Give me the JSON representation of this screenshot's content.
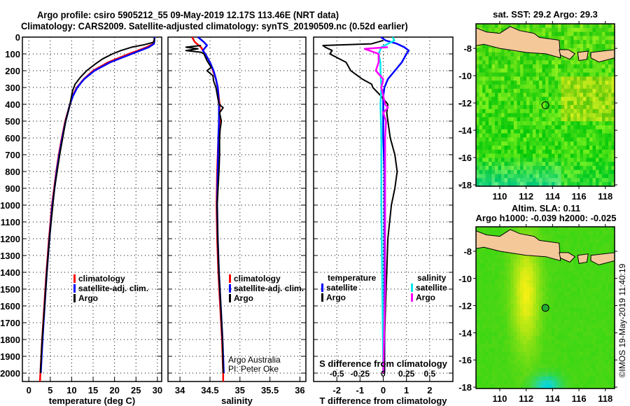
{
  "header": {
    "line1": "Argo profile: csiro 5905212_55 09-May-2019 12.17S 113.46E (NRT data)",
    "line2": "Climatology: CARS2009. Satellite-adjusted climatology: synTS_20190509.nc (0.52d earlier)"
  },
  "colors": {
    "climatology": "#ff0000",
    "satellite": "#0000ff",
    "argo": "#000000",
    "salinity_satellite": "#00e5ee",
    "salinity_argo": "#ff00ff",
    "land": "#f5c89a"
  },
  "chart_data": [
    {
      "type": "line",
      "name": "temperature-profile",
      "xlabel": "temperature (deg C)",
      "ylabel": "",
      "xlim": [
        -1.5,
        31
      ],
      "ylim": [
        2050,
        0
      ],
      "xticks": [
        0,
        5,
        10,
        15,
        20,
        25,
        30
      ],
      "yticks": [
        0,
        100,
        200,
        300,
        400,
        500,
        600,
        700,
        800,
        900,
        1000,
        1100,
        1200,
        1300,
        1400,
        1500,
        1600,
        1700,
        1800,
        1900,
        2000
      ],
      "grid": true,
      "legend": {
        "position": "lower-right",
        "entries": [
          "climatology",
          "satellite-adj. clim.",
          "Argo"
        ]
      },
      "series": [
        {
          "name": "climatology",
          "color_key": "climatology",
          "depth": [
            20,
            40,
            60,
            80,
            100,
            150,
            200,
            250,
            300,
            350,
            400,
            500,
            600,
            700,
            800,
            900,
            1000,
            1200,
            1400,
            1600,
            1800,
            2000,
            2050
          ],
          "values": [
            29.2,
            29.0,
            27.5,
            25.5,
            23.3,
            18.5,
            15.0,
            12.8,
            11.2,
            10.2,
            9.6,
            8.5,
            7.7,
            7.0,
            6.4,
            5.9,
            5.4,
            4.7,
            4.1,
            3.6,
            3.1,
            2.7,
            2.6
          ]
        },
        {
          "name": "satellite-adj. clim.",
          "color_key": "satellite",
          "depth": [
            0,
            20,
            40,
            60,
            80,
            100,
            150,
            200,
            250,
            300,
            350,
            400,
            500,
            600,
            700,
            800,
            900,
            1000,
            1200,
            1400,
            1600,
            1800,
            2000
          ],
          "values": [
            29.3,
            29.3,
            29.2,
            28.0,
            26.0,
            24.0,
            19.0,
            15.3,
            12.9,
            11.3,
            10.3,
            9.6,
            8.6,
            7.8,
            7.1,
            6.5,
            6.0,
            5.5,
            4.8,
            4.2,
            3.7,
            3.2,
            2.8
          ]
        },
        {
          "name": "Argo",
          "color_key": "argo",
          "depth": [
            5,
            30,
            45,
            60,
            80,
            100,
            130,
            160,
            200,
            240,
            280,
            320,
            360,
            400,
            450,
            500,
            600,
            700,
            800,
            900,
            1000,
            1200,
            1400,
            1600,
            1800,
            2000
          ],
          "values": [
            29.3,
            29.2,
            27.0,
            24.0,
            21.5,
            19.5,
            17.2,
            15.5,
            13.5,
            12.0,
            10.8,
            10.2,
            9.9,
            9.6,
            9.1,
            8.6,
            7.9,
            7.2,
            6.6,
            6.0,
            5.6,
            4.8,
            4.2,
            3.7,
            3.1,
            2.7
          ]
        }
      ]
    },
    {
      "type": "line",
      "name": "salinity-profile",
      "xlabel": "salinity",
      "xlim": [
        33.8,
        36.1
      ],
      "ylim": [
        2050,
        0
      ],
      "xticks": [
        34,
        34.5,
        35,
        35.5,
        36
      ],
      "grid": true,
      "legend": {
        "position": "lower-right",
        "entries": [
          "climatology",
          "satellite-adj. clim.",
          "Argo"
        ]
      },
      "annotation": [
        "Argo Australia",
        "PI: Peter Oke"
      ],
      "series": [
        {
          "name": "climatology",
          "color_key": "climatology",
          "depth": [
            0,
            30,
            60,
            100,
            150,
            200,
            250,
            300,
            400,
            500,
            600,
            800,
            1000,
            1200,
            1400,
            1600,
            1800,
            2000,
            2050
          ],
          "values": [
            34.2,
            34.25,
            34.35,
            34.42,
            34.5,
            34.55,
            34.6,
            34.63,
            34.66,
            34.66,
            34.64,
            34.62,
            34.61,
            34.62,
            34.64,
            34.67,
            34.7,
            34.72,
            34.72
          ]
        },
        {
          "name": "satellite-adj. clim.",
          "color_key": "satellite",
          "depth": [
            0,
            30,
            50,
            80,
            100,
            150,
            200,
            250,
            300,
            400,
            500,
            600,
            800,
            1000,
            1200,
            1400,
            1600,
            1800,
            2000
          ],
          "values": [
            34.3,
            34.4,
            34.45,
            34.38,
            34.42,
            34.5,
            34.56,
            34.6,
            34.63,
            34.65,
            34.65,
            34.64,
            34.63,
            34.62,
            34.63,
            34.65,
            34.68,
            34.71,
            34.73
          ]
        },
        {
          "name": "Argo",
          "color_key": "argo",
          "depth": [
            50,
            60,
            70,
            80,
            90,
            100,
            140,
            180,
            200,
            230,
            260,
            300,
            400,
            420,
            450,
            500,
            550,
            600,
            700,
            800,
            1000,
            1200,
            1400,
            1600,
            1800,
            2000
          ],
          "values": [
            34.35,
            34.1,
            34.3,
            34.1,
            34.35,
            34.4,
            34.45,
            34.52,
            34.45,
            34.55,
            34.56,
            34.6,
            34.65,
            34.72,
            34.66,
            34.69,
            34.67,
            34.66,
            34.66,
            34.65,
            34.62,
            34.63,
            34.65,
            34.68,
            34.71,
            34.72
          ]
        }
      ]
    },
    {
      "type": "line",
      "name": "difference-profile",
      "xlabel": "T difference from climatology",
      "xlabel2": "S difference from climatology",
      "xlim": [
        -3,
        3
      ],
      "x2lim": [
        -0.75,
        0.75
      ],
      "ylim": [
        2050,
        0
      ],
      "xticks": [
        -2,
        -1,
        0,
        1,
        2
      ],
      "x2ticks": [
        -0.5,
        -0.25,
        0,
        0.25,
        0.5
      ],
      "x2ticklabels": [
        "-0.5",
        "-0.25",
        "0",
        "0.25",
        "0.5"
      ],
      "grid": true,
      "legend": {
        "position": "lower-left/lower-right",
        "temperature_title": "temperature",
        "temperature_entries": [
          "satellite",
          "Argo"
        ],
        "salinity_title": "salinity",
        "salinity_entries": [
          "satellite",
          "Argo"
        ]
      },
      "series": [
        {
          "name": "temperature satellite",
          "color_key": "satellite",
          "axis": "T",
          "depth": [
            0,
            20,
            40,
            60,
            80,
            100,
            150,
            200,
            250,
            300,
            350,
            400,
            500,
            600,
            800,
            1000,
            1500,
            2000
          ],
          "values": [
            -0.1,
            0.1,
            0.6,
            0.9,
            1.1,
            1.0,
            0.8,
            0.5,
            0.2,
            0.05,
            0.0,
            0.0,
            0.0,
            0.0,
            0.05,
            0.05,
            0.05,
            0.05
          ]
        },
        {
          "name": "temperature Argo",
          "color_key": "argo",
          "axis": "T",
          "depth": [
            20,
            40,
            50,
            60,
            80,
            100,
            150,
            200,
            250,
            280,
            300,
            350,
            400,
            450,
            500,
            600,
            700,
            800,
            900,
            1000,
            1200,
            1400,
            1600,
            1800,
            2000
          ],
          "values": [
            0,
            -0.5,
            -2.6,
            -2.5,
            -2.2,
            -2.3,
            -1.6,
            -1.4,
            -0.9,
            -0.5,
            -0.45,
            -0.1,
            0.2,
            0.15,
            0.2,
            0.3,
            0.5,
            0.6,
            0.5,
            0.35,
            0.2,
            0.15,
            0.1,
            0.05,
            0.05
          ]
        },
        {
          "name": "salinity satellite",
          "color_key": "salinity_satellite",
          "axis": "S",
          "depth": [
            0,
            20,
            40,
            60,
            100,
            150,
            200,
            300,
            400,
            600,
            800,
            1000,
            1500,
            2000
          ],
          "values": [
            0.1,
            0.12,
            0.05,
            -0.02,
            -0.05,
            -0.03,
            -0.03,
            -0.02,
            -0.03,
            -0.02,
            -0.02,
            -0.02,
            -0.01,
            0.0
          ]
        },
        {
          "name": "salinity Argo",
          "color_key": "salinity_argo",
          "axis": "S",
          "depth": [
            60,
            70,
            80,
            100,
            120,
            150,
            200,
            250,
            300,
            350,
            400,
            420,
            450,
            500,
            600,
            800,
            1000,
            1200,
            1500,
            2000
          ],
          "values": [
            0.05,
            -0.2,
            -0.15,
            -0.05,
            -0.05,
            -0.05,
            -0.08,
            0.0,
            -0.02,
            0.0,
            0.02,
            0.05,
            0.0,
            0.03,
            0.02,
            0.02,
            0.02,
            0.02,
            0.02,
            0.0
          ]
        }
      ]
    },
    {
      "type": "heatmap",
      "name": "sst-map",
      "title": "sat. SST: 29.2 Argo: 29.3",
      "xlim": [
        108.2,
        118.7
      ],
      "ylim": [
        -18.1,
        -6.2
      ],
      "xticks": [
        110,
        112,
        114,
        116,
        118
      ],
      "yticks": [
        -8,
        -10,
        -12,
        -14,
        -16,
        -18
      ],
      "marker": {
        "lon": 113.46,
        "lat": -12.17
      }
    },
    {
      "type": "heatmap",
      "name": "sla-map",
      "title": "Altim. SLA: 0.11",
      "subtitle": "Argo h1000: -0.039 h2000: -0.025",
      "xlim": [
        108.2,
        118.7
      ],
      "ylim": [
        -18.1,
        -6.2
      ],
      "xticks": [
        110,
        112,
        114,
        116,
        118
      ],
      "yticks": [
        -8,
        -10,
        -12,
        -14,
        -16,
        -18
      ],
      "marker": {
        "lon": 113.46,
        "lat": -12.17
      }
    }
  ],
  "footer": {
    "credit": "©IMOS 19-May-2019 11:40:19"
  }
}
